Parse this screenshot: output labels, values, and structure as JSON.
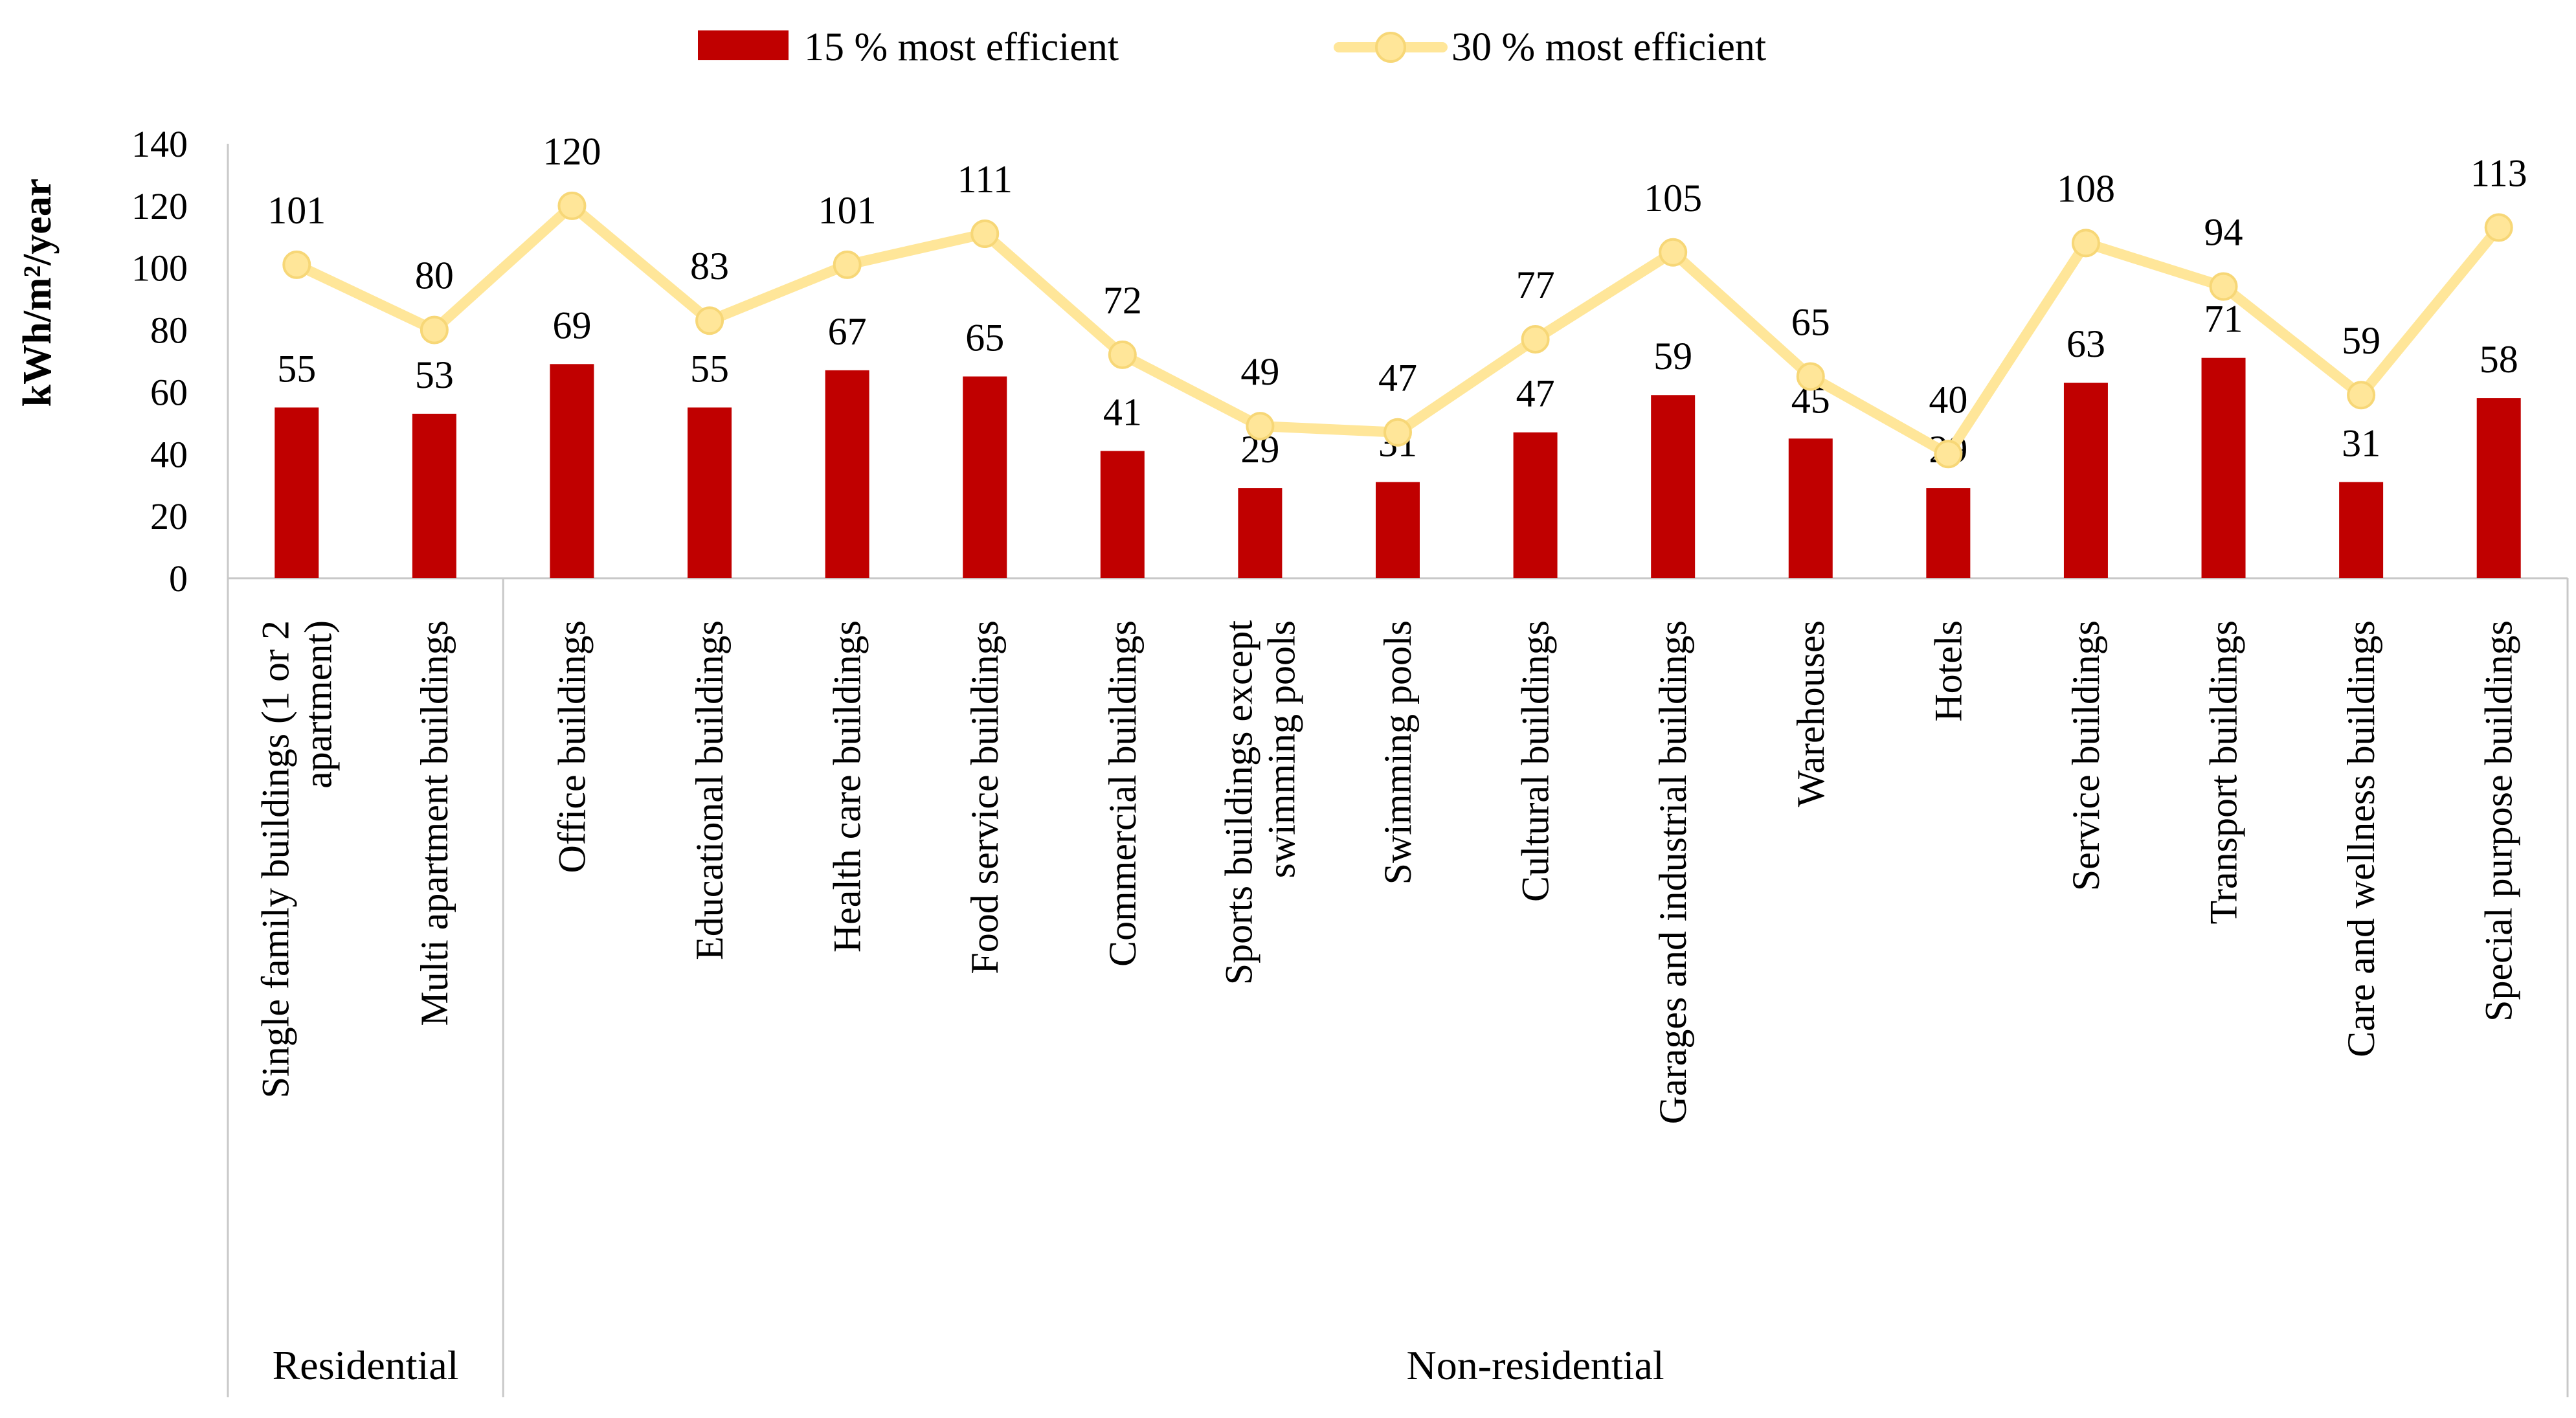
{
  "chart_data": {
    "type": "bar+line",
    "title": "",
    "xlabel": "",
    "ylabel": "kWh/m²/year",
    "ylim": [
      0,
      140
    ],
    "yticks": [
      0,
      20,
      40,
      60,
      80,
      100,
      120,
      140
    ],
    "grid": false,
    "legend_position": "top-center",
    "categories": [
      "Single family buildings (1 or 2 apartment)",
      "Multi apartment buildings",
      "Office buildings",
      "Educational buildings",
      "Health care buildings",
      "Food service buildings",
      "Commercial buildings",
      "Sports buildings except swimming pools",
      "Swimming pools",
      "Cultural buildings",
      "Garages and industrial buildings",
      "Warehouses",
      "Hotels",
      "Service buildings",
      "Transport buildings",
      "Care and wellness buildings",
      "Special purpose buildings"
    ],
    "category_lines": [
      [
        "Single family buildings (1 or 2",
        "apartment)"
      ],
      [
        "Multi apartment buildings"
      ],
      [
        "Office buildings"
      ],
      [
        "Educational buildings"
      ],
      [
        "Health care buildings"
      ],
      [
        "Food service buildings"
      ],
      [
        "Commercial buildings"
      ],
      [
        "Sports buildings except",
        "swimming pools"
      ],
      [
        "Swimming pools"
      ],
      [
        "Cultural buildings"
      ],
      [
        "Garages and industrial buildings"
      ],
      [
        "Warehouses"
      ],
      [
        "Hotels"
      ],
      [
        "Service buildings"
      ],
      [
        "Transport buildings"
      ],
      [
        "Care and wellness buildings"
      ],
      [
        "Special purpose buildings"
      ]
    ],
    "groups": [
      {
        "label": "Residential",
        "start": 0,
        "end": 1
      },
      {
        "label": "Non-residential",
        "start": 2,
        "end": 16
      }
    ],
    "series": [
      {
        "name": "15 % most efficient",
        "type": "bar",
        "color": "#C00000",
        "values": [
          55,
          53,
          69,
          55,
          67,
          65,
          41,
          29,
          31,
          47,
          59,
          45,
          29,
          63,
          71,
          31,
          58
        ]
      },
      {
        "name": "30 % most efficient",
        "type": "line",
        "color": "#FFE699",
        "values": [
          101,
          80,
          120,
          83,
          101,
          111,
          72,
          49,
          47,
          77,
          105,
          65,
          40,
          108,
          94,
          59,
          113
        ]
      }
    ]
  }
}
